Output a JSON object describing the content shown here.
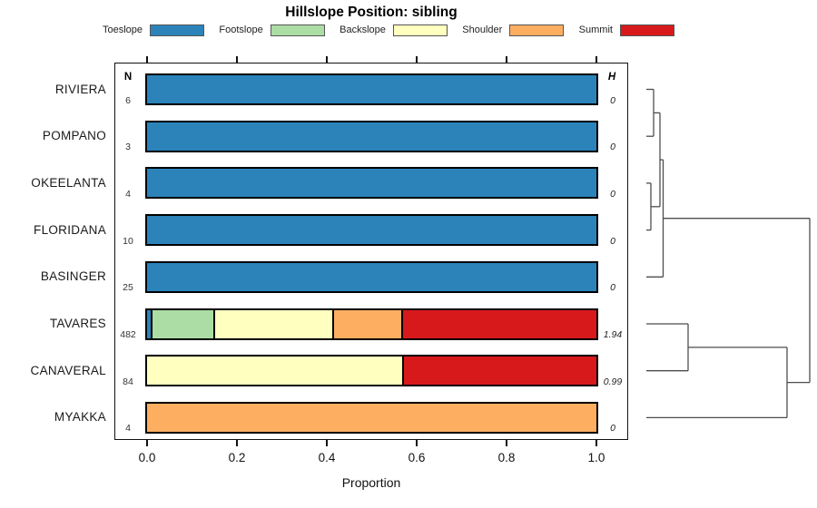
{
  "title": "Hillslope Position: sibling",
  "legend": {
    "items": [
      {
        "label": "Toeslope",
        "color": "#2B83BA"
      },
      {
        "label": "Footslope",
        "color": "#ABDDA4"
      },
      {
        "label": "Backslope",
        "color": "#FFFFBF"
      },
      {
        "label": "Shoulder",
        "color": "#FDAE61"
      },
      {
        "label": "Summit",
        "color": "#D7191C"
      }
    ]
  },
  "columns": {
    "n_header": "N",
    "h_header": "H"
  },
  "axis": {
    "xlabel": "Proportion"
  },
  "chart_data": {
    "type": "bar",
    "orientation": "horizontal",
    "stacked": true,
    "title": "Hillslope Position: sibling",
    "xlabel": "Proportion",
    "xlim": [
      0,
      1
    ],
    "x_ticks": [
      {
        "label": "0.0",
        "value": 0.0
      },
      {
        "label": "0.2",
        "value": 0.2
      },
      {
        "label": "0.4",
        "value": 0.4
      },
      {
        "label": "0.6",
        "value": 0.6
      },
      {
        "label": "0.8",
        "value": 0.8
      },
      {
        "label": "1.0",
        "value": 1.0
      }
    ],
    "series_key": [
      "Toeslope",
      "Footslope",
      "Backslope",
      "Shoulder",
      "Summit"
    ],
    "palette": {
      "Toeslope": "#2B83BA",
      "Footslope": "#ABDDA4",
      "Backslope": "#FFFFBF",
      "Shoulder": "#FDAE61",
      "Summit": "#D7191C"
    },
    "rows": [
      {
        "name": "RIVIERA",
        "n": 6,
        "h": "0",
        "segments": [
          {
            "position": "Toeslope",
            "proportion": 1.0
          }
        ]
      },
      {
        "name": "POMPANO",
        "n": 3,
        "h": "0",
        "segments": [
          {
            "position": "Toeslope",
            "proportion": 1.0
          }
        ]
      },
      {
        "name": "OKEELANTA",
        "n": 4,
        "h": "0",
        "segments": [
          {
            "position": "Toeslope",
            "proportion": 1.0
          }
        ]
      },
      {
        "name": "FLORIDANA",
        "n": 10,
        "h": "0",
        "segments": [
          {
            "position": "Toeslope",
            "proportion": 1.0
          }
        ]
      },
      {
        "name": "BASINGER",
        "n": 25,
        "h": "0",
        "segments": [
          {
            "position": "Toeslope",
            "proportion": 1.0
          }
        ]
      },
      {
        "name": "TAVARES",
        "n": 482,
        "h": "1.94",
        "segments": [
          {
            "position": "Toeslope",
            "proportion": 0.012
          },
          {
            "position": "Footslope",
            "proportion": 0.139
          },
          {
            "position": "Backslope",
            "proportion": 0.266
          },
          {
            "position": "Shoulder",
            "proportion": 0.152
          },
          {
            "position": "Summit",
            "proportion": 0.431
          }
        ]
      },
      {
        "name": "CANAVERAL",
        "n": 84,
        "h": "0.99",
        "segments": [
          {
            "position": "Backslope",
            "proportion": 0.571
          },
          {
            "position": "Summit",
            "proportion": 0.429
          }
        ]
      },
      {
        "name": "MYAKKA",
        "n": 4,
        "h": "0",
        "segments": [
          {
            "position": "Shoulder",
            "proportion": 1.0
          }
        ]
      }
    ],
    "dendrogram": {
      "structure": "(((RIVIERA,POMPANO),(OKEELANTA,FLORIDANA)),BASINGER) joined at root with ((TAVARES,CANAVERAL),MYAKKA)",
      "line_color": "#4d4d4d",
      "segments": [
        {
          "x1": 712,
          "y1": 98.5,
          "x2": 720,
          "y2": 98.5
        },
        {
          "x1": 712,
          "y1": 150.2,
          "x2": 720,
          "y2": 150.2
        },
        {
          "x1": 720,
          "y1": 98.5,
          "x2": 720,
          "y2": 150.2
        },
        {
          "x1": 720,
          "y1": 124.4,
          "x2": 727,
          "y2": 124.4
        },
        {
          "x1": 712,
          "y1": 201.9,
          "x2": 717,
          "y2": 201.9
        },
        {
          "x1": 712,
          "y1": 253.6,
          "x2": 717,
          "y2": 253.6
        },
        {
          "x1": 717,
          "y1": 201.9,
          "x2": 717,
          "y2": 253.6
        },
        {
          "x1": 717,
          "y1": 227.8,
          "x2": 727,
          "y2": 227.8
        },
        {
          "x1": 727,
          "y1": 124.4,
          "x2": 727,
          "y2": 227.8
        },
        {
          "x1": 727,
          "y1": 176.1,
          "x2": 730.5,
          "y2": 176.1
        },
        {
          "x1": 712,
          "y1": 305.3,
          "x2": 730.5,
          "y2": 305.3
        },
        {
          "x1": 730.5,
          "y1": 176.1,
          "x2": 730.5,
          "y2": 305.3
        },
        {
          "x1": 730.5,
          "y1": 240.7,
          "x2": 892,
          "y2": 240.7
        },
        {
          "x1": 712,
          "y1": 357,
          "x2": 758,
          "y2": 357
        },
        {
          "x1": 712,
          "y1": 408.7,
          "x2": 758,
          "y2": 408.7
        },
        {
          "x1": 758,
          "y1": 357,
          "x2": 758,
          "y2": 408.7
        },
        {
          "x1": 758,
          "y1": 382.9,
          "x2": 867,
          "y2": 382.9
        },
        {
          "x1": 712,
          "y1": 460.4,
          "x2": 867,
          "y2": 460.4
        },
        {
          "x1": 867,
          "y1": 382.9,
          "x2": 867,
          "y2": 460.4
        },
        {
          "x1": 867,
          "y1": 421.6,
          "x2": 892,
          "y2": 421.6
        },
        {
          "x1": 892,
          "y1": 240.7,
          "x2": 892,
          "y2": 421.6
        }
      ]
    }
  }
}
